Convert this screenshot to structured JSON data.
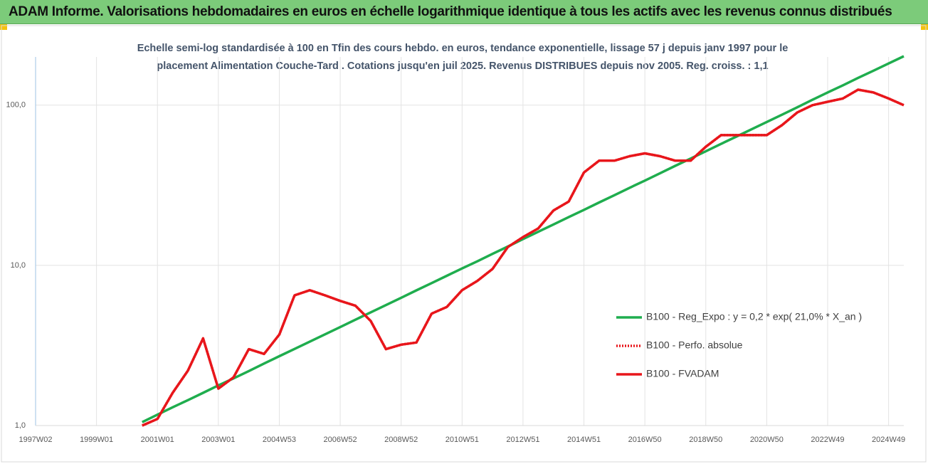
{
  "header": {
    "title": "ADAM Informe. Valorisations hebdomadaires en euros en échelle logarithmique identique à tous les actifs avec les revenus connus distribués"
  },
  "chart_data": {
    "type": "line",
    "subtitle": [
      "Echelle semi-log standardisée à 100 en Tfin des cours hebdo. en euros, tendance exponentielle, lissage 57 j depuis janv 1997 pour le",
      "placement Alimentation Couche-Tard . Cotations jusqu'en juil 2025. Revenus DISTRIBUES depuis nov 2005. Reg. croiss. : 1,1"
    ],
    "categories": [
      "1997W02",
      null,
      null,
      null,
      "1999W01",
      null,
      null,
      null,
      "2001W01",
      null,
      null,
      null,
      "2003W01",
      null,
      null,
      null,
      "2004W53",
      null,
      null,
      null,
      "2006W52",
      null,
      null,
      null,
      "2008W52",
      null,
      null,
      null,
      "2010W51",
      null,
      null,
      null,
      "2012W51",
      null,
      null,
      null,
      "2014W51",
      null,
      null,
      null,
      "2016W50",
      null,
      null,
      null,
      "2018W50",
      null,
      null,
      null,
      "2020W50",
      null,
      null,
      null,
      "2022W49",
      null,
      null,
      null,
      "2024W49",
      null
    ],
    "series": [
      {
        "name": "B100 - Reg_Expo : y = 0,2 * exp( 21,0% *  X_an )",
        "color": "#1fad4e",
        "style": "solid",
        "values": [
          null,
          null,
          null,
          null,
          null,
          null,
          null,
          1.05,
          1.17,
          1.3,
          1.44,
          1.6,
          1.78,
          1.97,
          2.19,
          2.44,
          2.71,
          3.01,
          3.34,
          3.71,
          4.12,
          4.58,
          5.09,
          5.65,
          6.28,
          6.98,
          7.75,
          8.61,
          9.57,
          10.6,
          11.8,
          13.1,
          14.6,
          16.2,
          18.0,
          20.0,
          22.2,
          24.7,
          27.4,
          30.5,
          33.8,
          37.6,
          41.8,
          46.4,
          51.5,
          57.3,
          63.6,
          70.7,
          78.5,
          87.2,
          96.9,
          108,
          120,
          133,
          148,
          164,
          182,
          202
        ]
      },
      {
        "name": "B100 - Perfo. absolue",
        "color": "#e8161b",
        "style": "dotted",
        "values": [
          null,
          null,
          null,
          null,
          null,
          null,
          null,
          1.0,
          1.1,
          1.6,
          2.2,
          3.5,
          1.7,
          2.0,
          3.0,
          2.8,
          3.7,
          6.5,
          7.0,
          6.5,
          6.0,
          5.6,
          4.5,
          3.0,
          3.2,
          3.3,
          5.0,
          5.5,
          7.0,
          8.0,
          9.5,
          13,
          15,
          17,
          22,
          25,
          38,
          45,
          45,
          48,
          50,
          48,
          45,
          45,
          55,
          65,
          65,
          65,
          65,
          75,
          90,
          100,
          105,
          110,
          125,
          120,
          110,
          100
        ]
      },
      {
        "name": "B100 - FVADAM",
        "color": "#e8161b",
        "style": "solid",
        "values": [
          null,
          null,
          null,
          null,
          null,
          null,
          null,
          1.0,
          1.1,
          1.6,
          2.2,
          3.5,
          1.7,
          2.0,
          3.0,
          2.8,
          3.7,
          6.5,
          7.0,
          6.5,
          6.0,
          5.6,
          4.5,
          3.0,
          3.2,
          3.3,
          5.0,
          5.5,
          7.0,
          8.0,
          9.5,
          13,
          15,
          17,
          22,
          25,
          38,
          45,
          45,
          48,
          50,
          48,
          45,
          45,
          55,
          65,
          65,
          65,
          65,
          75,
          90,
          100,
          105,
          110,
          125,
          120,
          110,
          100
        ]
      }
    ],
    "log_scale": true,
    "ylim": [
      1,
      200
    ],
    "yticks": [
      {
        "value": 1,
        "label": "1,0"
      },
      {
        "value": 10,
        "label": "10,0"
      },
      {
        "value": 100,
        "label": "100,0"
      }
    ],
    "grid": true
  }
}
